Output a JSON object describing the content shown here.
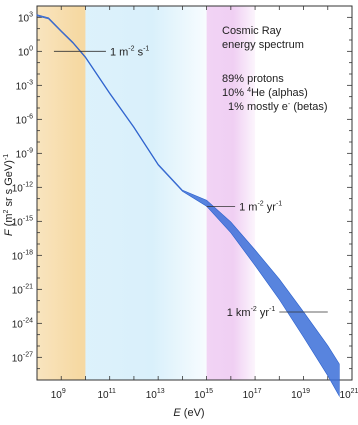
{
  "chart_data": {
    "type": "line",
    "title": "Cosmic Ray\nenergy spectrum",
    "composition": [
      "89% protons",
      "10% 4He (alphas)",
      "1% mostly e- (betas)"
    ],
    "xlabel": "E (eV)",
    "ylabel": "F (m2 sr s GeV)-1",
    "x_scale": "log",
    "y_scale": "log",
    "xlim": [
      100000000.0,
      1e+21
    ],
    "ylim": [
      1e-29,
      10000.0
    ],
    "x_tick_labels": [
      "10^9",
      "10^11",
      "10^13",
      "10^15",
      "10^17",
      "10^19",
      "10^21"
    ],
    "y_tick_labels": [
      "10^3",
      "10^0",
      "10^-3",
      "10^-6",
      "10^-9",
      "10^-12",
      "10^-15",
      "10^-18",
      "10^-21",
      "10^-24",
      "10^-27"
    ],
    "series": [
      {
        "x": [
          100000000.0,
          300000000.0,
          1000000000.0,
          3000000000.0,
          10000000000.0,
          100000000000.0,
          1000000000000.0,
          10000000000000.0,
          100000000000000.0,
          1000000000000000.0,
          1e+16,
          1e+17,
          1e+18,
          1e+19,
          1e+20,
          3e+20
        ],
        "y": [
          1500,
          800,
          60,
          6,
          0.3,
          0.0002,
          2e-07,
          1e-10,
          5e-13,
          4e-14,
          3e-16,
          6e-19,
          1e-21,
          8e-25,
          5e-28,
          1e-29
        ]
      }
    ],
    "bands": [
      {
        "x": [
          100000000.0,
          10000000000.0
        ],
        "color": "#f6d9a3"
      },
      {
        "x": [
          10000000000.0,
          1000000000000000.0
        ],
        "color": "#d9f0fb"
      },
      {
        "x": [
          1000000000000000.0,
          1e+17
        ],
        "color": "#f0cff3"
      }
    ],
    "annotations": [
      {
        "label": "1 m-2 s-1",
        "x": [
          500000000.0,
          70000000000.0
        ],
        "y": 1
      },
      {
        "label": "1 m-2 yr-1",
        "x": [
          1000000000000000.0,
          1.5e+16
        ],
        "y": 2e-14
      },
      {
        "label": "1 km-2 yr-1",
        "x": [
          1e+18,
          1e+20
        ],
        "y": 1e-23
      }
    ]
  }
}
